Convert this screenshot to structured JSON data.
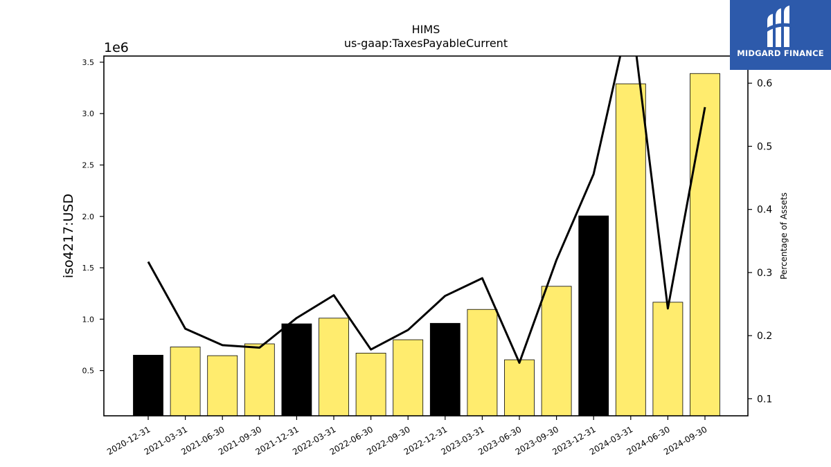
{
  "chart_data": {
    "type": "bar",
    "title": "HIMS",
    "subtitle": "us-gaap:TaxesPayableCurrent",
    "ylabel": "iso4217:USD",
    "y_offset_label": "1e6",
    "y2label": "Percentage of Assets",
    "categories": [
      "2020-12-31",
      "2021-03-31",
      "2021-06-30",
      "2021-09-30",
      "2021-12-31",
      "2022-03-31",
      "2022-06-30",
      "2022-09-30",
      "2022-12-31",
      "2023-03-31",
      "2023-06-30",
      "2023-09-30",
      "2023-12-31",
      "2024-03-31",
      "2024-06-30",
      "2024-09-30"
    ],
    "values": [
      650000,
      730000,
      645000,
      760000,
      955000,
      1010000,
      670000,
      800000,
      960000,
      1095000,
      605000,
      1320000,
      2005000,
      3290000,
      1165000,
      3390000
    ],
    "bar_colors": [
      "#000000",
      "#ffec6e",
      "#ffec6e",
      "#ffec6e",
      "#000000",
      "#ffec6e",
      "#ffec6e",
      "#ffec6e",
      "#000000",
      "#ffec6e",
      "#ffec6e",
      "#ffec6e",
      "#000000",
      "#ffec6e",
      "#ffec6e",
      "#ffec6e"
    ],
    "line_values": [
      0.317,
      0.211,
      0.185,
      0.181,
      0.228,
      0.264,
      0.178,
      0.209,
      0.263,
      0.291,
      0.157,
      0.32,
      0.456,
      0.717,
      0.243,
      0.562
    ],
    "ylim": [
      60000,
      3560000
    ],
    "y_ticks": [
      500000,
      1000000,
      1500000,
      2000000,
      2500000,
      3000000,
      3500000
    ],
    "y_tick_labels": [
      "0.5",
      "1.0",
      "1.5",
      "2.0",
      "2.5",
      "3.0",
      "3.5"
    ],
    "y2lim": [
      0.073,
      0.643
    ],
    "y2_ticks": [
      0.1,
      0.2,
      0.3,
      0.4,
      0.5,
      0.6
    ],
    "y2_tick_labels": [
      "0.1",
      "0.2",
      "0.3",
      "0.4",
      "0.5",
      "0.6"
    ],
    "grid": false,
    "legend": "none"
  },
  "logo": {
    "name": "MIDGARD FINANCE",
    "icon": "midgard-logo-icon"
  }
}
